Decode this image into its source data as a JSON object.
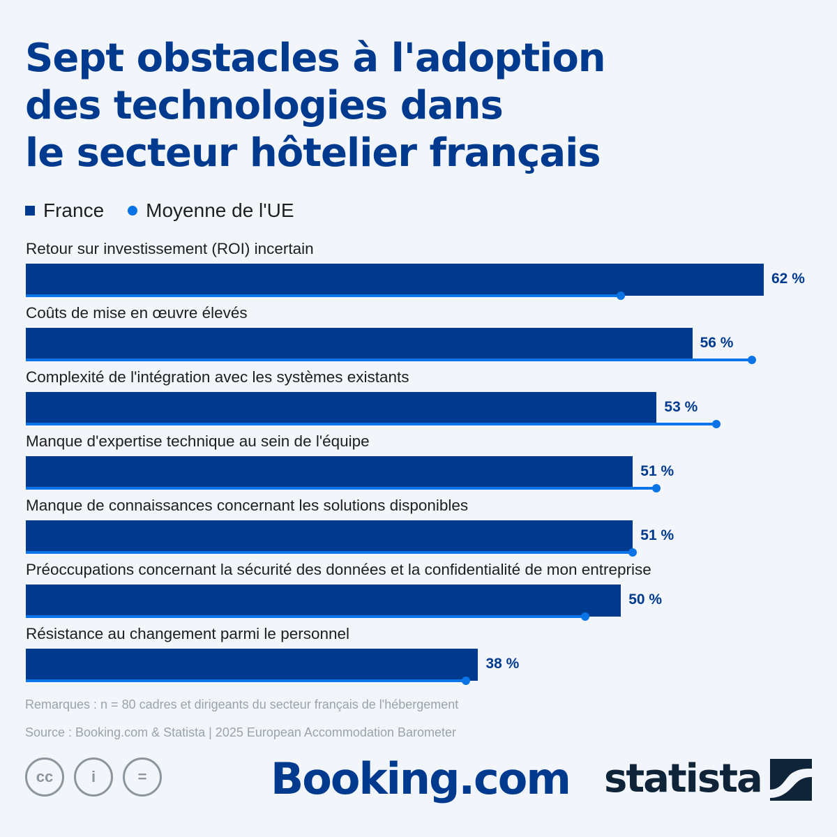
{
  "header": {
    "title_lines": [
      "Sept obstacles à l'adoption",
      "des technologies dans",
      "le secteur hôtelier français"
    ]
  },
  "legend": {
    "france": "France",
    "eu": "Moyenne de l'UE"
  },
  "colors": {
    "france": "#003a8f",
    "eu": "#0a73e6",
    "background": "#f2f6fa"
  },
  "chart_data": {
    "type": "bar",
    "orientation": "horizontal",
    "categories": [
      "Retour sur investissement (ROI) incertain",
      "Coûts de mise en œuvre élevés",
      "Complexité de l'intégration avec les systèmes existants",
      "Manque d'expertise technique au sein de l'équipe",
      "Manque de connaissances concernant les solutions disponibles",
      "Préoccupations concernant la sécurité des données et la confidentialité de mon entreprise",
      "Résistance au changement parmi le personnel"
    ],
    "series": [
      {
        "name": "France",
        "values": [
          62,
          56,
          53,
          51,
          51,
          50,
          38
        ]
      },
      {
        "name": "Moyenne de l'UE",
        "values": [
          50,
          61,
          58,
          53,
          51,
          47,
          37
        ]
      }
    ],
    "value_labels": [
      "62 %",
      "56 %",
      "53 %",
      "51 %",
      "51 %",
      "50 %",
      "38 %"
    ],
    "xlim": [
      0,
      62
    ],
    "legend_position": "top-left",
    "grid": false
  },
  "footer": {
    "remark": "Remarques : n = 80 cadres et dirigeants du secteur français de l'hébergement",
    "source": "Source : Booking.com & Statista | 2025 European Accommodation Barometer",
    "cc_icons": [
      "cc-icon",
      "attribution-icon",
      "no-derivatives-icon"
    ],
    "cc_labels": [
      "cc",
      "i",
      "="
    ],
    "booking_logo": "Booking.com",
    "statista_logo": "statista"
  }
}
